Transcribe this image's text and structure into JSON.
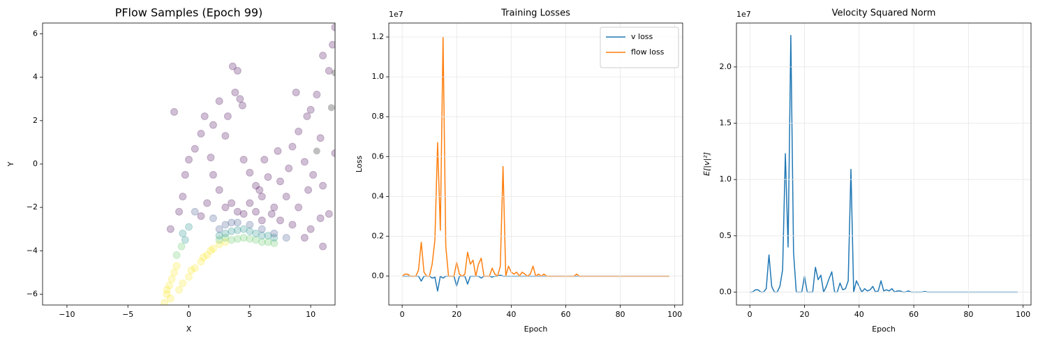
{
  "chart_data": [
    {
      "type": "scatter",
      "title": "PFlow Samples (Epoch 99)",
      "xlabel": "X",
      "ylabel": "Y",
      "xlim": [
        -12,
        12
      ],
      "ylim": [
        -6.5,
        6.5
      ],
      "xticks": [
        {
          "value": -10,
          "label": "−10"
        },
        {
          "value": -5,
          "label": "−5"
        },
        0,
        5,
        10
      ],
      "yticks": [
        {
          "value": -6,
          "label": "−6"
        },
        {
          "value": -4,
          "label": "−4"
        },
        {
          "value": -2,
          "label": "−2"
        },
        0,
        2,
        4,
        6
      ],
      "grid": false,
      "alpha": 0.25,
      "x": [
        -2,
        -1.8,
        -1.6,
        -1.4,
        -1.2,
        -1,
        -0.5,
        0,
        0.5,
        1,
        1.5,
        2,
        2.5,
        3,
        -1.8,
        -1.5,
        -0.8,
        0.2,
        1.2,
        1.8,
        3.5,
        4,
        4.5,
        5,
        5.5,
        6,
        6.5,
        7,
        -1,
        -0.6,
        2.5,
        3,
        3,
        3.5,
        4,
        4.5,
        5,
        5.5,
        6,
        6.5,
        7,
        2.5,
        -0.5,
        0,
        -0.3,
        2.5,
        3,
        3.5,
        4,
        5,
        6,
        7,
        8,
        0.5,
        2,
        -1.2,
        -1.5,
        -0.8,
        -0.5,
        -0.3,
        0,
        0.5,
        1,
        1.3,
        2,
        2.5,
        3,
        3.2,
        3.6,
        4,
        4.2,
        4.4,
        3.8,
        4.5,
        5,
        5.5,
        6,
        6.5,
        7,
        7.5,
        8,
        8.5,
        9,
        9.5,
        10,
        10.5,
        11,
        11.5,
        12,
        11.8,
        10.8,
        10.2,
        9.8,
        9,
        8.5,
        7.5,
        6.8,
        6,
        5.5,
        5,
        4.5,
        4,
        3.5,
        3,
        2.5,
        2,
        1.5,
        1,
        1.8,
        11,
        11.5,
        12,
        10,
        9.5,
        11,
        8.8,
        9.7,
        10.8,
        7.3,
        6.2,
        5.8,
        8.2,
        10.5,
        11.7,
        12
      ],
      "y": [
        -6.4,
        -6,
        -5.6,
        -5.3,
        -5,
        -4.7,
        -5.5,
        -5.2,
        -4.8,
        -4.5,
        -4.2,
        -3.9,
        -3.7,
        -3.6,
        -5.8,
        -6.2,
        -5.8,
        -4.9,
        -4.3,
        -4,
        -3.5,
        -3.45,
        -3.4,
        -3.45,
        -3.5,
        -3.6,
        -3.6,
        -3.65,
        -4.2,
        -3.8,
        -3.5,
        -3.4,
        -3.2,
        -3.1,
        -3.05,
        -3,
        -3.1,
        -3.2,
        -3.3,
        -3.3,
        -3.4,
        -3.3,
        -3.2,
        -2.9,
        -3.5,
        -3,
        -2.8,
        -2.7,
        -2.7,
        -2.8,
        -3,
        -3.2,
        -3.4,
        -2.2,
        -2.5,
        2.4,
        -3,
        -2.2,
        -1.5,
        -0.5,
        0.2,
        0.7,
        1.4,
        2.2,
        1.8,
        2.9,
        1.3,
        2.2,
        4.5,
        4.3,
        3,
        2.7,
        3.3,
        0.2,
        -0.4,
        -1,
        -1.5,
        -0.6,
        -2,
        -0.8,
        -1.5,
        0.8,
        1.5,
        0.1,
        2.5,
        3.2,
        5,
        4.3,
        6.3,
        5.5,
        1.2,
        -0.5,
        -1.2,
        -2,
        -2.8,
        -2.6,
        -2.3,
        -2.6,
        -2.2,
        -1.8,
        -2.3,
        -2.2,
        -1.8,
        -2,
        -1.2,
        -0.5,
        -1.8,
        -2.4,
        0.3,
        -1,
        -2.3,
        0.5,
        -3,
        -3.4,
        -3.8,
        3.3,
        2.2,
        -2.5,
        0.6,
        0.2,
        -1.2,
        -0.2,
        0.6,
        2.6,
        4.2
      ],
      "colors": [
        "#fde725",
        "#fde725",
        "#fde725",
        "#fde725",
        "#fde725",
        "#fde725",
        "#fde725",
        "#fde725",
        "#fde725",
        "#fde725",
        "#fde725",
        "#fde725",
        "#fde725",
        "#fde725",
        "#fde725",
        "#fde725",
        "#fde725",
        "#fde725",
        "#fde725",
        "#fde725",
        "#5ec962",
        "#5ec962",
        "#5ec962",
        "#5ec962",
        "#5ec962",
        "#5ec962",
        "#5ec962",
        "#5ec962",
        "#5ec962",
        "#5ec962",
        "#5ec962",
        "#5ec962",
        "#21918c",
        "#21918c",
        "#21918c",
        "#21918c",
        "#21918c",
        "#21918c",
        "#21918c",
        "#21918c",
        "#21918c",
        "#21918c",
        "#21918c",
        "#21918c",
        "#21918c",
        "#3b528b",
        "#3b528b",
        "#3b528b",
        "#3b528b",
        "#3b528b",
        "#3b528b",
        "#3b528b",
        "#3b528b",
        "#3b528b",
        "#3b528b",
        "#440154",
        "#440154",
        "#440154",
        "#440154",
        "#440154",
        "#440154",
        "#440154",
        "#440154",
        "#440154",
        "#440154",
        "#440154",
        "#440154",
        "#440154",
        "#440154",
        "#440154",
        "#440154",
        "#440154",
        "#440154",
        "#440154",
        "#440154",
        "#440154",
        "#440154",
        "#440154",
        "#440154",
        "#440154",
        "#440154",
        "#440154",
        "#440154",
        "#440154",
        "#440154",
        "#440154",
        "#440154",
        "#440154",
        "#440154",
        "#440154",
        "#440154",
        "#440154",
        "#440154",
        "#440154",
        "#440154",
        "#440154",
        "#440154",
        "#440154",
        "#440154",
        "#440154",
        "#440154",
        "#440154",
        "#440154",
        "#440154",
        "#440154",
        "#440154",
        "#440154",
        "#440154",
        "#440154",
        "#440154",
        "#440154",
        "#440154",
        "#440154",
        "#440154",
        "#440154",
        "#440154",
        "#440154",
        "#440154",
        "#440154",
        "#440154",
        "#440154",
        "#440154"
      ]
    },
    {
      "type": "line",
      "title": "Training Losses",
      "xlabel": "Epoch",
      "ylabel": "Loss",
      "offset_label": "1e7",
      "xlim": [
        -4.9,
        102.9
      ],
      "ylim": [
        -0.145,
        1.27
      ],
      "xticks": [
        0,
        20,
        40,
        60,
        80,
        100
      ],
      "yticks": [
        {
          "value": 0,
          "label": "0.0"
        },
        0.2,
        0.4,
        0.6,
        0.8,
        {
          "value": 1,
          "label": "1.0"
        },
        1.2
      ],
      "grid": true,
      "legend": "upper right",
      "x": [
        0,
        1,
        2,
        3,
        4,
        5,
        6,
        7,
        8,
        9,
        10,
        11,
        12,
        13,
        14,
        15,
        16,
        17,
        18,
        19,
        20,
        21,
        22,
        23,
        24,
        25,
        26,
        27,
        28,
        29,
        30,
        31,
        32,
        33,
        34,
        35,
        36,
        37,
        38,
        39,
        40,
        41,
        42,
        43,
        44,
        45,
        46,
        47,
        48,
        49,
        50,
        51,
        52,
        53,
        54,
        55,
        56,
        57,
        58,
        59,
        60,
        61,
        62,
        63,
        64,
        65,
        66,
        67,
        68,
        69,
        70,
        71,
        72,
        73,
        74,
        75,
        76,
        77,
        78,
        79,
        80,
        81,
        82,
        83,
        84,
        85,
        86,
        87,
        88,
        89,
        90,
        91,
        92,
        93,
        94,
        95,
        96,
        97,
        98
      ],
      "series": [
        {
          "name": "v loss",
          "color": "#1f77b4",
          "values": [
            0,
            0,
            0,
            0,
            0,
            0,
            0,
            -0.025,
            0,
            0,
            0,
            -0.01,
            -0.005,
            -0.075,
            0,
            -0.01,
            0,
            0,
            0,
            0,
            -0.05,
            0,
            0,
            0,
            -0.04,
            0,
            0,
            0,
            0,
            -0.01,
            0,
            0,
            0,
            -0.005,
            0,
            0,
            0.005,
            0,
            0,
            0,
            0,
            0,
            0,
            0,
            0,
            0,
            0,
            0,
            0,
            0,
            0,
            0,
            0,
            0,
            0,
            0,
            0,
            0,
            0,
            0,
            0,
            0,
            0,
            0,
            0,
            0,
            0,
            0,
            0,
            0,
            0,
            0,
            0,
            0,
            0,
            0,
            0,
            0,
            0,
            0,
            0,
            0,
            0,
            0,
            0,
            0,
            0,
            0,
            0,
            0,
            0,
            0,
            0,
            0,
            0,
            0,
            0,
            0,
            0
          ]
        },
        {
          "name": "flow loss",
          "color": "#ff7f0e",
          "values": [
            0,
            0.01,
            0.01,
            0,
            0,
            0,
            0.03,
            0.17,
            0.02,
            0,
            0,
            0.06,
            0.18,
            0.67,
            0.23,
            1.2,
            0.15,
            0,
            0,
            0,
            0.07,
            0.01,
            0,
            0.01,
            0.12,
            0.06,
            0.08,
            0,
            0.06,
            0.09,
            0,
            0,
            0,
            0.04,
            0.01,
            0,
            0.05,
            0.55,
            0,
            0.05,
            0.02,
            0.01,
            0.02,
            0,
            0.02,
            0.01,
            0,
            0.01,
            0.05,
            0,
            0.01,
            0,
            0.01,
            0,
            0,
            0,
            0,
            0,
            0,
            0,
            0,
            0,
            0,
            0,
            0.01,
            0,
            0,
            0,
            0,
            0,
            0,
            0,
            0,
            0,
            0,
            0,
            0,
            0,
            0,
            0,
            0,
            0,
            0,
            0,
            0,
            0,
            0,
            0,
            0,
            0,
            0,
            0,
            0,
            0,
            0,
            0,
            0,
            0,
            0
          ]
        }
      ]
    },
    {
      "type": "line",
      "title": "Velocity Squared Norm",
      "xlabel": "Epoch",
      "ylabel": "E[|v|²]",
      "offset_label": "1e7",
      "xlim": [
        -4.9,
        102.9
      ],
      "ylim": [
        -0.115,
        2.39
      ],
      "xticks": [
        0,
        20,
        40,
        60,
        80,
        100
      ],
      "yticks": [
        {
          "value": 0,
          "label": "0.0"
        },
        0.5,
        {
          "value": 1,
          "label": "1.0"
        },
        1.5,
        {
          "value": 2,
          "label": "2.0"
        }
      ],
      "grid": true,
      "x": [
        0,
        1,
        2,
        3,
        4,
        5,
        6,
        7,
        8,
        9,
        10,
        11,
        12,
        13,
        14,
        15,
        16,
        17,
        18,
        19,
        20,
        21,
        22,
        23,
        24,
        25,
        26,
        27,
        28,
        29,
        30,
        31,
        32,
        33,
        34,
        35,
        36,
        37,
        38,
        39,
        40,
        41,
        42,
        43,
        44,
        45,
        46,
        47,
        48,
        49,
        50,
        51,
        52,
        53,
        54,
        55,
        56,
        57,
        58,
        59,
        60,
        61,
        62,
        63,
        64,
        65,
        66,
        67,
        68,
        69,
        70,
        71,
        72,
        73,
        74,
        75,
        76,
        77,
        78,
        79,
        80,
        81,
        82,
        83,
        84,
        85,
        86,
        87,
        88,
        89,
        90,
        91,
        92,
        93,
        94,
        95,
        96,
        97,
        98
      ],
      "series": [
        {
          "color": "#1f77b4",
          "values": [
            0,
            0,
            0.02,
            0.02,
            0,
            0,
            0.03,
            0.33,
            0.05,
            0,
            0,
            0.05,
            0.2,
            1.23,
            0.4,
            2.28,
            0.35,
            0,
            0,
            0,
            0.14,
            0,
            0,
            0,
            0.22,
            0.11,
            0.15,
            0,
            0.05,
            0.12,
            0.18,
            0,
            0,
            0.08,
            0.02,
            0.03,
            0.1,
            1.09,
            0,
            0.1,
            0.05,
            0,
            0.03,
            0.01,
            0.02,
            0.05,
            0,
            0.01,
            0.1,
            0.01,
            0.02,
            0.01,
            0.03,
            0,
            0.01,
            0.01,
            0,
            0,
            0.01,
            0,
            0,
            0,
            0,
            0,
            0.005,
            0,
            0,
            0,
            0,
            0,
            0,
            0,
            0,
            0,
            0,
            0,
            0,
            0,
            0,
            0,
            0,
            0,
            0,
            0,
            0,
            0,
            0,
            0,
            0,
            0,
            0,
            0,
            0,
            0,
            0,
            0,
            0,
            0,
            0
          ]
        }
      ]
    }
  ]
}
